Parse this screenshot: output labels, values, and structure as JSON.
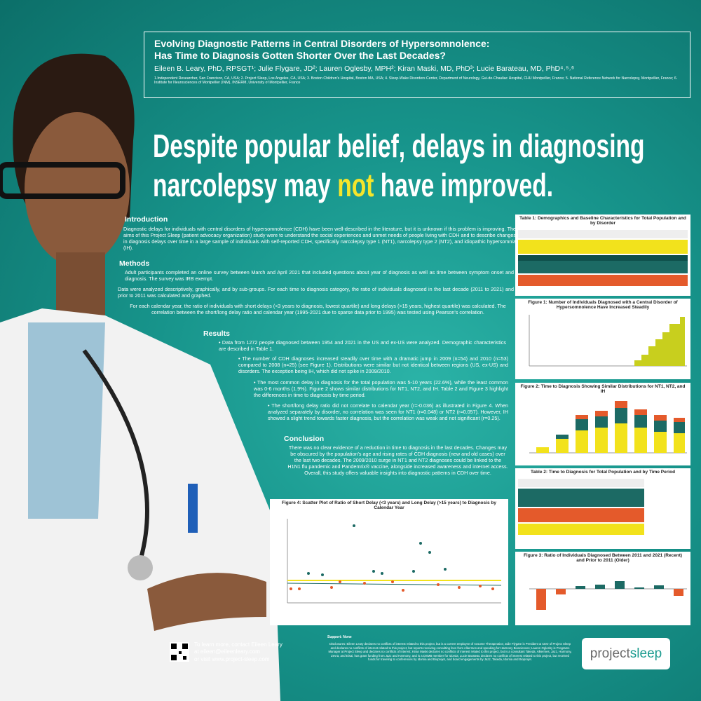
{
  "header": {
    "title_line1": "Evolving Diagnostic Patterns in Central Disorders of Hypersomnolence:",
    "title_line2": "Has Time to Diagnosis Gotten Shorter Over the Last Decades?",
    "authors": "Eileen B. Leary, PhD, RPSGT¹; Julie Flygare, JD²; Lauren Oglesby, MPH²; Kiran Maski, MD, PhD³; Lucie Barateau, MD, PhD⁴˒⁵˒⁶",
    "affiliations": "1.Independent Researcher, San Francisco, CA, USA; 2. Project Sleep, Los Angeles, CA, USA; 3. Boston Children's Hospital, Boston MA, USA; 4. Sleep-Wake Disorders Center, Department of Neurology, Gui-de-Chauliac Hospital, CHU Montpellier, France; 5. National Reference Network for Narcolepsy, Montpellier, France; 6. Institute for Neurosciences of Montpellier (INM), INSERM, University of Montpellier, France"
  },
  "headline": {
    "line1": "Despite popular belief, delays in diagnosing",
    "line2_a": "narcolepsy may ",
    "line2_em": "not",
    "line2_b": " have improved."
  },
  "introduction": {
    "heading": "Introduction",
    "text": "Diagnostic delays for individuals with central disorders of hypersomnolence (CDH) have been well-described in the literature, but it is unknown if this problem is improving. The aims of this Project Sleep (patient advocacy organization) study were to understand the social experiences and unmet needs of people living with CDH and to describe changes in diagnosis delays over time in a large sample of individuals with self-reported CDH, specifically narcolepsy type 1 (NT1), narcolepsy type 2 (NT2), and idiopathic hypersomnia (IH)."
  },
  "methods": {
    "heading": "Methods",
    "p1": "Adult participants completed an online survey between March and April 2021 that included questions about year of diagnosis as well as time between symptom onset and diagnosis. The survey was IRB exempt.",
    "p2": "Data were analyzed descriptively, graphically, and by sub-groups. For each time to diagnosis category, the ratio of individuals diagnosed in the last decade (2011 to 2021) and prior to 2011 was calculated and graphed.",
    "p3": "For each calendar year, the ratio of individuals with short delays (<3 years to diagnosis, lowest quartile) and long delays (>15 years, highest quartile) was calculated. The correlation between the short/long delay ratio and calendar year (1995-2021 due to sparse data prior to 1995) was tested using Pearson's correlation."
  },
  "results": {
    "heading": "Results",
    "b1": "• Data from 1272 people diagnosed between 1954 and 2021 in the US and ex-US were analyzed. Demographic characteristics are described in Table 1.",
    "b2": "• The number of CDH diagnoses increased steadily over time with a dramatic jump in 2009 (n=54) and 2010 (n=53) compared to 2008 (n=25) (see Figure 1). Distributions were similar but not identical between regions (US, ex-US) and disorders. The exception being IH, which did not spike in 2009/2010.",
    "b3": "• The most common delay in diagnosis for the total population was 5-10 years (22.6%), while the least common was 0-6 months (1.9%). Figure 2 shows similar distributions for NT1, NT2, and IH. Table 2 and Figure 3 highlight the differences in time to diagnosis by time period.",
    "b4": "• The short/long delay ratio did not correlate to calendar year (r=-0.036) as illustrated in Figure 4. When analyzed separately by disorder, no correlation was seen for NT1 (r=0.048) or NT2 (r=0.057). However, IH showed a slight trend towards faster diagnosis, but the correlation was weak and not significant (r=0.25)."
  },
  "conclusion": {
    "heading": "Conclusion",
    "text": "There was no clear evidence of a reduction in time to diagnosis in the last decades. Changes may be obscured by the population's age and rising rates of CDH diagnosis (new and old cases) over the last two decades. The 2009/2010 surge in NT1 and NT2 diagnoses could be linked to the H1N1 flu pandemic and Pandemrix® vaccine, alongside increased awareness and internet access. Overall, this study offers valuable insights into diagnostic patterns in CDH over time."
  },
  "figures": {
    "table1": "Table 1: Demographics and Baseline Characteristics for Total Population and by Disorder",
    "fig1": "Figure 1: Number of Individuals Diagnosed with a Central Disorder of Hypersomnolence Have Increased Steadily",
    "fig2": "Figure 2: Time to Diagnosis Showing Similar Distributions for NT1, NT2, and IH",
    "table2": "Table 2: Time to Diagnosis for Total Population and by Time Period",
    "fig5": "Figure 3: Ratio of Individuals Diagnosed Between 2011 and 2021 (Recent) and Prior to 2011 (Older)",
    "fig4": "Figure 4: Scatter Plot of Ratio of Short Delay (<3 years) and Long Delay (>15 years) to Diagnosis by Calendar Year"
  },
  "contact": {
    "line1": "To learn more, contact Eileen Leary",
    "line2": "at eileen@eileenleary.com",
    "line3": "or visit www.project-sleep.com"
  },
  "support": "Support: None",
  "disclosures": "Disclosures: Eileen Leary declares no conflicts of interest related to this project, but is a current employee of Axsome Therapeutics; Julie Flygare is President & CEO of Project Sleep and declares no conflicts of interest related to this project, but reports receiving consulting fees from Alkermes and speaking for Harmony Biosciences; Lauren Oglesby is Programs Manager at Project Sleep and declares no conflicts of interest; Kiran Maski declares no conflicts of interest related to this project, but is a consultant Takeda, Alkermes, Jazz, Harmony, Zevra, and Eisai, has grant funding from Jazz and Harmony, and is a DSMB member for Idorsia; Lucie Barateau declares no conflicts of interest related to this project, but received funds for traveling to conferences by Idorsia and Bioprojet, and board engagements by Jazz, Takeda, Idorsia and Bioprojet.",
  "logo": {
    "a": "project",
    "b": "sleep"
  }
}
